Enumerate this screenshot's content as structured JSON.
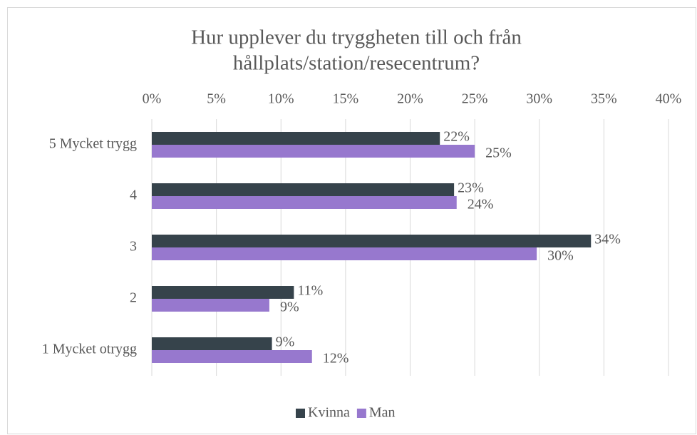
{
  "chart_data": {
    "type": "bar",
    "orientation": "horizontal",
    "title": [
      "Hur upplever du tryggheten till och från",
      "hållplats/station/resecentrum?"
    ],
    "categories": [
      "5 Mycket trygg",
      "4",
      "3",
      "2",
      "1 Mycket otrygg"
    ],
    "series": [
      {
        "name": "Kvinna",
        "color": "#36434b",
        "values": [
          22.3,
          23.4,
          34.0,
          11.0,
          9.3
        ],
        "value_labels": [
          "22%",
          "23%",
          "34%",
          "11%",
          "9%"
        ]
      },
      {
        "name": "Man",
        "color": "#9778ce",
        "values": [
          25.0,
          23.6,
          29.8,
          9.1,
          12.4
        ],
        "value_labels": [
          "25%",
          "24%",
          "30%",
          "9%",
          "12%"
        ]
      }
    ],
    "xlim": [
      0,
      40
    ],
    "xticks": [
      {
        "value": 0,
        "label": "0%"
      },
      {
        "value": 5,
        "label": "5%"
      },
      {
        "value": 10,
        "label": "10%"
      },
      {
        "value": 15,
        "label": "15%"
      },
      {
        "value": 20,
        "label": "20%"
      },
      {
        "value": 25,
        "label": "25%"
      },
      {
        "value": 30,
        "label": "30%"
      },
      {
        "value": 35,
        "label": "35%"
      },
      {
        "value": 40,
        "label": "40%"
      }
    ],
    "grid": true,
    "legend": "bottom"
  }
}
